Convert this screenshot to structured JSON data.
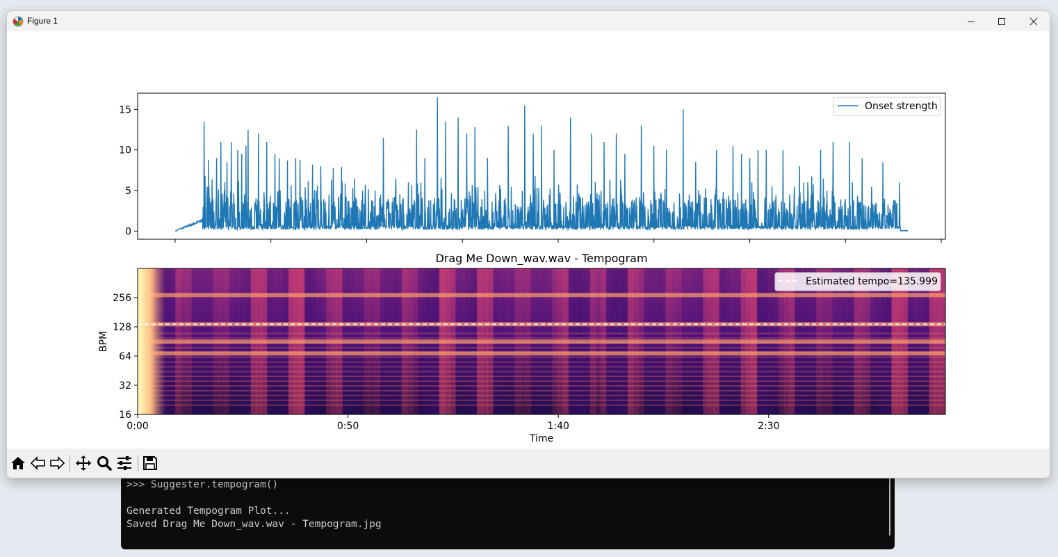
{
  "window": {
    "title": "Figure 1"
  },
  "terminal": {
    "lines": [
      ">>> Suggester.tempogram()",
      "",
      "Generated Tempogram Plot...",
      "Saved Drag Me Down_wav.wav - Tempogram.jpg"
    ]
  },
  "toolbar": {
    "tools": [
      "home-icon",
      "back-arrow-icon",
      "forward-arrow-icon",
      "pan-icon",
      "zoom-icon",
      "configure-subplots-icon",
      "save-icon"
    ]
  },
  "colors": {
    "series": "#1f77b4",
    "tempo_line": "#ffffff"
  },
  "chart_data": [
    {
      "type": "line",
      "title": "",
      "xlabel": "",
      "ylabel": "",
      "ylim": [
        -1,
        17
      ],
      "yticks": [
        0,
        5,
        10,
        15
      ],
      "yticklabels": [
        "0",
        "5",
        "10",
        "15"
      ],
      "xlim": [
        -9,
        185
      ],
      "xticks": [
        0,
        23,
        46,
        69,
        92,
        115,
        138,
        161,
        184
      ],
      "legend": {
        "entries": [
          "Onset strength"
        ],
        "placement": "upper right"
      },
      "grid": false,
      "series": [
        {
          "name": "Onset strength",
          "x_start": 0,
          "x_end": 176,
          "peaks_x": [
            7,
            7.2,
            8,
            10,
            11,
            12.5,
            13.5,
            15,
            16,
            17,
            17.5,
            20,
            22,
            24,
            25,
            27,
            29,
            30,
            33,
            35,
            38,
            40,
            45,
            48,
            50,
            53,
            56,
            58,
            60,
            63,
            65,
            68,
            70,
            72,
            75,
            80,
            84,
            86,
            88,
            91,
            95,
            100,
            103,
            106,
            108,
            112,
            115,
            118,
            122,
            125,
            130,
            134,
            136,
            138,
            140,
            142,
            146,
            150,
            155,
            158,
            162,
            165,
            170,
            174
          ],
          "peaks_y": [
            13.5,
            6.8,
            8.8,
            9.0,
            11.0,
            8.5,
            11.0,
            10.0,
            9.5,
            10.5,
            12.5,
            12.0,
            11.0,
            9.5,
            9.0,
            8.7,
            9.0,
            8.8,
            8.2,
            8.0,
            7.8,
            7.9,
            5.0,
            5.0,
            11.5,
            6.5,
            6.0,
            12.5,
            9.0,
            16.5,
            13.5,
            14.0,
            12.0,
            12.8,
            9.0,
            13.0,
            15.5,
            12.0,
            13.0,
            10.0,
            14.0,
            12.0,
            11.0,
            12.0,
            9.5,
            13.0,
            10.5,
            10.0,
            15.0,
            8.5,
            10.0,
            10.5,
            9.5,
            9.0,
            10.0,
            10.0,
            10.0,
            8.0,
            10.0,
            11.0,
            11.0,
            9.0,
            8.5,
            6.0
          ],
          "baseline": 0.6
        }
      ]
    },
    {
      "type": "heatmap",
      "title": "Drag Me Down_wav.wav - Tempogram",
      "xlabel": "Time",
      "ylabel": "BPM",
      "xlim": [
        0,
        192
      ],
      "xticklabels": [
        "0:00",
        "0:50",
        "1:40",
        "2:30"
      ],
      "xticks": [
        0,
        50,
        100,
        150
      ],
      "y_scale": "log2",
      "ylim": [
        16,
        512
      ],
      "yticks": [
        16,
        32,
        64,
        128,
        256
      ],
      "yticklabels": [
        "16",
        "32",
        "64",
        "128",
        "256"
      ],
      "colormap": "magma",
      "estimated_tempo": 135.999,
      "legend": {
        "entries": [
          "Estimated tempo=135.999"
        ],
        "placement": "upper right"
      },
      "bright_bands_bpm": [
        68,
        90,
        136,
        272
      ]
    }
  ]
}
